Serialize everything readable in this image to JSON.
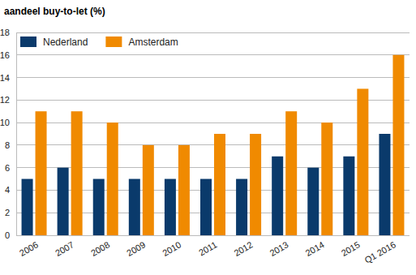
{
  "chart_data": {
    "type": "bar",
    "title": "aandeel buy-to-let (%)",
    "categories": [
      "2006",
      "2007",
      "2008",
      "2009",
      "2010",
      "2011",
      "2012",
      "2013",
      "2014",
      "2015",
      "Q1 2016"
    ],
    "series": [
      {
        "name": "Nederland",
        "color": "#0a3a6b",
        "values": [
          5,
          6,
          5,
          5,
          5,
          5,
          5,
          7,
          6,
          7,
          9
        ]
      },
      {
        "name": "Amsterdam",
        "color": "#f08a00",
        "values": [
          11,
          11,
          10,
          8,
          8,
          9,
          9,
          11,
          10,
          13,
          16
        ]
      }
    ],
    "ylim": [
      0,
      18
    ],
    "yticks": [
      0,
      2,
      4,
      6,
      8,
      10,
      12,
      14,
      16,
      18
    ],
    "grid": true,
    "legend": "top-left"
  }
}
